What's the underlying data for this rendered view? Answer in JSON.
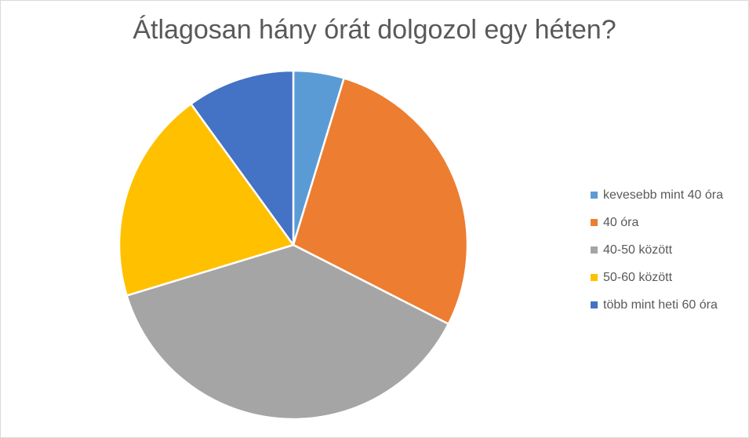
{
  "chart_data": {
    "type": "pie",
    "title": "Átlagosan hány órát dolgozol egy héten?",
    "categories": [
      "kevesebb mint 40 óra",
      "40 óra",
      "40-50 között",
      "50-60 között",
      "több mint heti 60 óra"
    ],
    "values": [
      4.7,
      27.8,
      37.8,
      19.7,
      10.0
    ],
    "colors": [
      "#5B9BD5",
      "#ED7D31",
      "#A5A5A5",
      "#FFC000",
      "#4472C4"
    ],
    "legend_position": "right",
    "start_angle": "12 o'clock, clockwise"
  }
}
